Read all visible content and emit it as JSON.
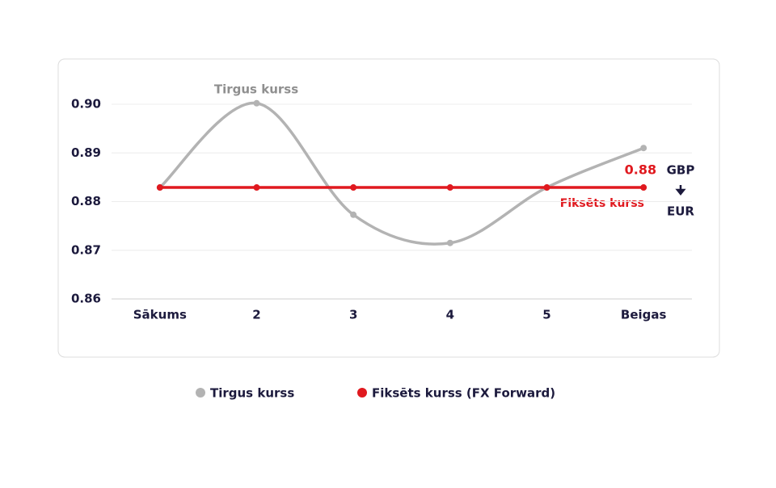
{
  "chart_data": {
    "type": "line",
    "categories": [
      "Sākums",
      "2",
      "3",
      "4",
      "5",
      "Beigas"
    ],
    "series": [
      {
        "name": "Tirgus kurss",
        "color": "#b3b3b3",
        "values": [
          0.8829,
          0.9002,
          0.8773,
          0.8715,
          0.8829,
          0.891
        ]
      },
      {
        "name": "Fiksēts kurss (FX Forward)",
        "color": "#e0191f",
        "values": [
          0.8829,
          0.8829,
          0.8829,
          0.8829,
          0.8829,
          0.8829
        ],
        "value_labels": [
          null,
          null,
          null,
          null,
          null,
          "0.88"
        ]
      }
    ],
    "ylim": [
      0.86,
      0.9
    ],
    "yticks": [
      {
        "value": 0.86,
        "label": "0.86"
      },
      {
        "value": 0.87,
        "label": "0.87"
      },
      {
        "value": 0.88,
        "label": "0.88"
      },
      {
        "value": 0.89,
        "label": "0.89"
      },
      {
        "value": 0.9,
        "label": "0.90"
      }
    ],
    "grid": true,
    "annotations": [
      "Tirgus kurss",
      "Fiksēts kurss",
      "GBP",
      "EUR"
    ]
  }
}
